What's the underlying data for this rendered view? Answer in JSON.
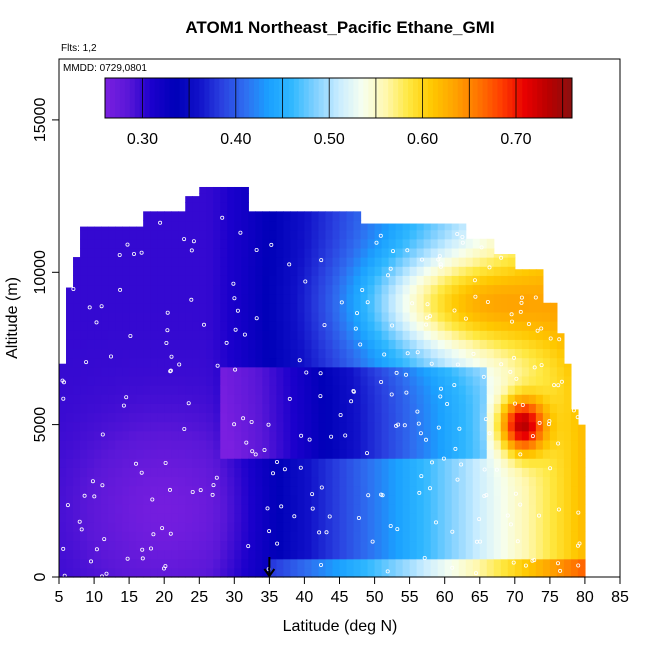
{
  "chart_data": {
    "type": "heatmap",
    "title": "ATOM1 Northeast_Pacific Ethane_GMI",
    "flights_note": "Flts: 1,2",
    "date_note": "MMDD: 0729,0801",
    "xlabel": "Latitude (deg N)",
    "ylabel": "Altitude (m)",
    "xlim": [
      5,
      85
    ],
    "ylim": [
      0,
      17000
    ],
    "x_ticks": [
      "5",
      "10",
      "15",
      "20",
      "25",
      "30",
      "35",
      "40",
      "45",
      "50",
      "55",
      "60",
      "65",
      "70",
      "75",
      "80",
      "85"
    ],
    "y_ticks": [
      "0",
      "5000",
      "10000",
      "15000"
    ],
    "colorbar": {
      "range": [
        0.26,
        0.76
      ],
      "tick_values": [
        0.3,
        0.4,
        0.5,
        0.6,
        0.7
      ],
      "tick_labels": [
        "0.30",
        "0.40",
        "0.50",
        "0.60",
        "0.70"
      ],
      "colors": [
        "#7a1fe0",
        "#5a17d8",
        "#1b00cc",
        "#0000b8",
        "#1010c8",
        "#2a40e0",
        "#2f6ef0",
        "#1aa0ff",
        "#30b8ff",
        "#80d0ff",
        "#c8ecff",
        "#f6fff0",
        "#fff8b0",
        "#ffe840",
        "#ffc800",
        "#ffa200",
        "#ff7400",
        "#ff3c00",
        "#e80000",
        "#b80000",
        "#8a1010"
      ]
    },
    "marker": {
      "latitude": 35,
      "symbol": "arrow-down"
    },
    "grid": false,
    "legend": "none"
  }
}
